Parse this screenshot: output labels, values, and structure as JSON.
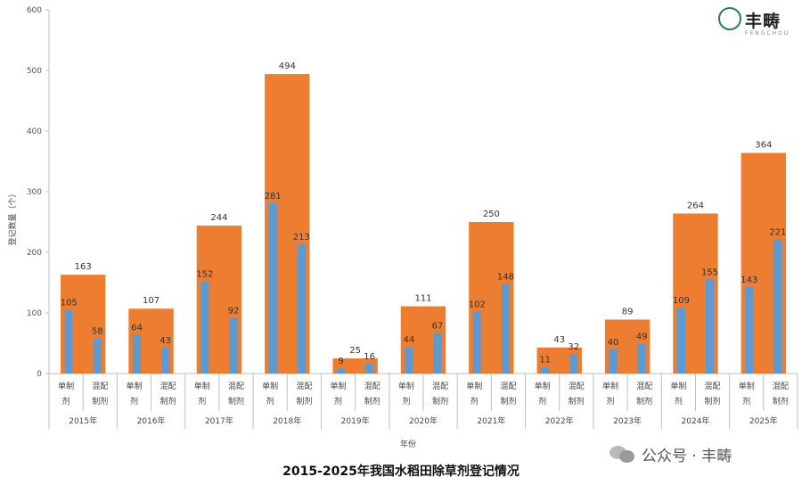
{
  "logo": {
    "name": "丰畴",
    "subtitle": "FENGCHOU",
    "mark_icon": "fengchou-logo-icon",
    "color": "#2e7d4f"
  },
  "watermark": {
    "text": "公众号 · 丰畴",
    "icon": "wechat-icon"
  },
  "colors": {
    "total": "#ed7d31",
    "component": "#5b9bd5",
    "axis": "#bfbfbf"
  },
  "chart_data": {
    "type": "bar",
    "title": "2015-2025年我国水稻田除草剂登记情况",
    "xlabel": "年份",
    "ylabel": "登记数量（个）",
    "ylim": [
      0,
      600
    ],
    "yticks": [
      0,
      100,
      200,
      300,
      400,
      500,
      600
    ],
    "ytick_labels": [
      "0",
      "100",
      "200",
      "300",
      "400",
      "500",
      "600"
    ],
    "categories": [
      "2015年",
      "2016年",
      "2017年",
      "2018年",
      "2019年",
      "2020年",
      "2021年",
      "2022年",
      "2023年",
      "2024年",
      "2025年"
    ],
    "sub_categories": [
      {
        "line1": "单制",
        "line2": "剂"
      },
      {
        "line1": "混配",
        "line2": "制剂"
      }
    ],
    "series": [
      {
        "values": [
          163,
          107,
          244,
          494,
          25,
          111,
          250,
          43,
          89,
          264,
          364
        ]
      },
      {
        "values": [
          105,
          64,
          152,
          281,
          9,
          44,
          102,
          11,
          40,
          109,
          143
        ]
      },
      {
        "values": [
          58,
          43,
          92,
          213,
          16,
          67,
          148,
          32,
          49,
          155,
          221
        ]
      }
    ],
    "grid": false,
    "legend": "none"
  }
}
